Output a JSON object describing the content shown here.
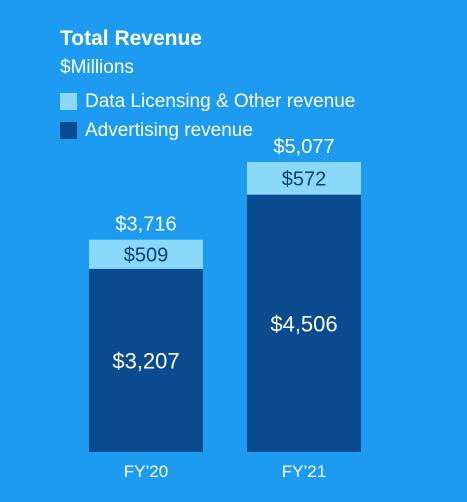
{
  "colors": {
    "background": "#1d9bf0",
    "data_licensing": "#8ad9f8",
    "advertising": "#0a4a8f",
    "text_light": "#ffffff",
    "text_dark": "#0a3d7a"
  },
  "chart_data": {
    "type": "bar",
    "stacked": true,
    "title": "Total Revenue",
    "subtitle": "$Millions",
    "categories": [
      "FY’20",
      "FY’21"
    ],
    "series": [
      {
        "name": "Advertising revenue",
        "values": [
          3207,
          4506
        ],
        "labels": [
          "$3,207",
          "$4,506"
        ]
      },
      {
        "name": "Data Licensing & Other revenue",
        "values": [
          509,
          572
        ],
        "labels": [
          "$509",
          "$572"
        ]
      }
    ],
    "totals": [
      3716,
      5077
    ],
    "total_labels": [
      "$3,716",
      "$5,077"
    ],
    "legend": [
      "Data Licensing & Other revenue",
      "Advertising revenue"
    ],
    "legend_position": "top-left",
    "grid": false
  }
}
